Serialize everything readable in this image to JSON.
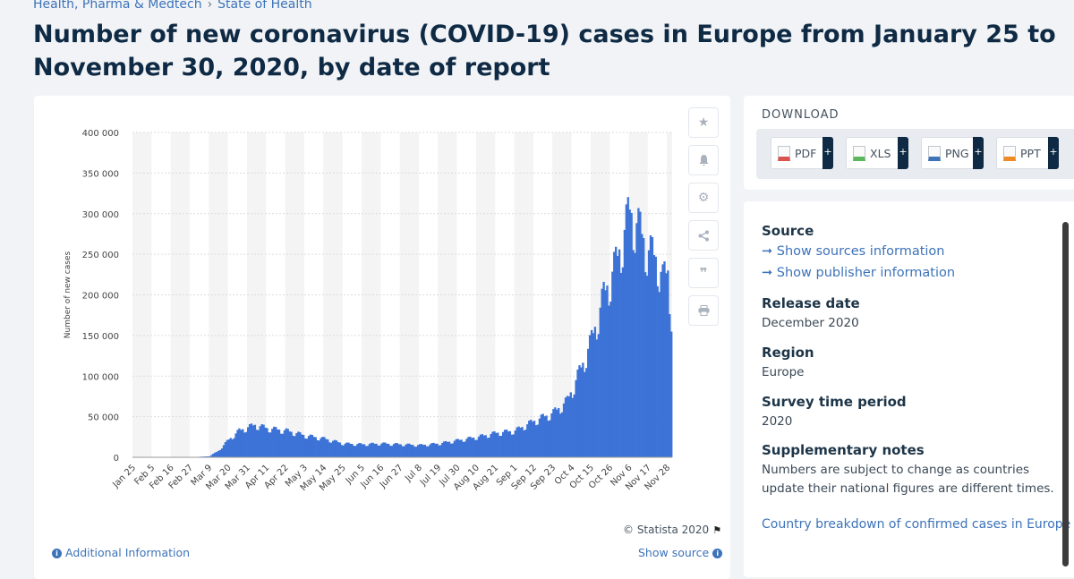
{
  "breadcrumb": {
    "level1": "Health, Pharma & Medtech",
    "separator": "›",
    "level2": "State of Health"
  },
  "page_title": "Number of new coronavirus (COVID-19) cases in Europe from January 25 to November 30, 2020, by date of report",
  "toolbar": {
    "icons": [
      "star-icon",
      "bell-icon",
      "gear-icon",
      "share-icon",
      "quote-icon",
      "print-icon"
    ]
  },
  "credit": {
    "text": "© Statista 2020",
    "flag": "⚑"
  },
  "links": {
    "additional_info": "Additional Information",
    "show_source": "Show source",
    "info_glyph": "i"
  },
  "download": {
    "title": "DOWNLOAD",
    "buttons": [
      {
        "label": "PDF",
        "color": "#d9534f"
      },
      {
        "label": "XLS",
        "color": "#5cb85c"
      },
      {
        "label": "PNG",
        "color": "#3d73b9"
      },
      {
        "label": "PPT",
        "color": "#f08a24"
      }
    ],
    "plus": "+"
  },
  "info": {
    "source_heading": "Source",
    "source_link1": "➞ Show sources information",
    "source_link2": "➞ Show publisher information",
    "release_heading": "Release date",
    "release_value": "December 2020",
    "region_heading": "Region",
    "region_value": "Europe",
    "period_heading": "Survey time period",
    "period_value": "2020",
    "notes_heading": "Supplementary notes",
    "notes_value": "Numbers are subject to change as countries update their national figures are different times.",
    "breakdown_link": "Country breakdown of confirmed cases in Europe"
  },
  "chart_data": {
    "type": "bar",
    "title": "",
    "xlabel": "",
    "ylabel": "Number of new cases",
    "ylim": [
      0,
      400000
    ],
    "y_ticks": [
      "0",
      "50 000",
      "100 000",
      "150 000",
      "200 000",
      "250 000",
      "300 000",
      "350 000",
      "400 000"
    ],
    "x_tick_labels": [
      "Jan 25",
      "Feb 5",
      "Feb 16",
      "Feb 27",
      "Mar 9",
      "Mar 20",
      "Mar 31",
      "Apr 11",
      "Apr 22",
      "May 3",
      "May 14",
      "May 25",
      "Jun 5",
      "Jun 16",
      "Jun 27",
      "Jul 8",
      "Jul 19",
      "Jul 30",
      "Aug 10",
      "Aug 21",
      "Sep 1",
      "Sep 12",
      "Sep 23",
      "Oct 4",
      "Oct 15",
      "Oct 26",
      "Nov 6",
      "Nov 17",
      "Nov 28"
    ],
    "grid": "vertical alternating bands",
    "bar_color": "#3d73d6",
    "date_range": [
      "2020-01-25",
      "2020-11-30"
    ],
    "anchors": [
      [
        "2020-01-25",
        0
      ],
      [
        "2020-02-27",
        200
      ],
      [
        "2020-03-05",
        800
      ],
      [
        "2020-03-09",
        1500
      ],
      [
        "2020-03-14",
        8000
      ],
      [
        "2020-03-20",
        22000
      ],
      [
        "2020-03-26",
        33000
      ],
      [
        "2020-03-31",
        37000
      ],
      [
        "2020-04-04",
        40000
      ],
      [
        "2020-04-11",
        36000
      ],
      [
        "2020-04-22",
        33000
      ],
      [
        "2020-05-03",
        27000
      ],
      [
        "2020-05-14",
        23000
      ],
      [
        "2020-05-25",
        17000
      ],
      [
        "2020-06-05",
        16000
      ],
      [
        "2020-06-16",
        17000
      ],
      [
        "2020-06-27",
        16000
      ],
      [
        "2020-07-08",
        15000
      ],
      [
        "2020-07-19",
        17000
      ],
      [
        "2020-07-30",
        21000
      ],
      [
        "2020-08-10",
        25000
      ],
      [
        "2020-08-21",
        30000
      ],
      [
        "2020-09-01",
        33000
      ],
      [
        "2020-09-12",
        45000
      ],
      [
        "2020-09-23",
        55000
      ],
      [
        "2020-10-01",
        70000
      ],
      [
        "2020-10-08",
        105000
      ],
      [
        "2020-10-15",
        145000
      ],
      [
        "2020-10-22",
        200000
      ],
      [
        "2020-10-29",
        240000
      ],
      [
        "2020-11-03",
        280000
      ],
      [
        "2020-11-06",
        305000
      ],
      [
        "2020-11-12",
        280000
      ],
      [
        "2020-11-17",
        255000
      ],
      [
        "2020-11-22",
        245000
      ],
      [
        "2020-11-25",
        220000
      ],
      [
        "2020-11-28",
        230000
      ],
      [
        "2020-11-30",
        180000
      ]
    ]
  }
}
